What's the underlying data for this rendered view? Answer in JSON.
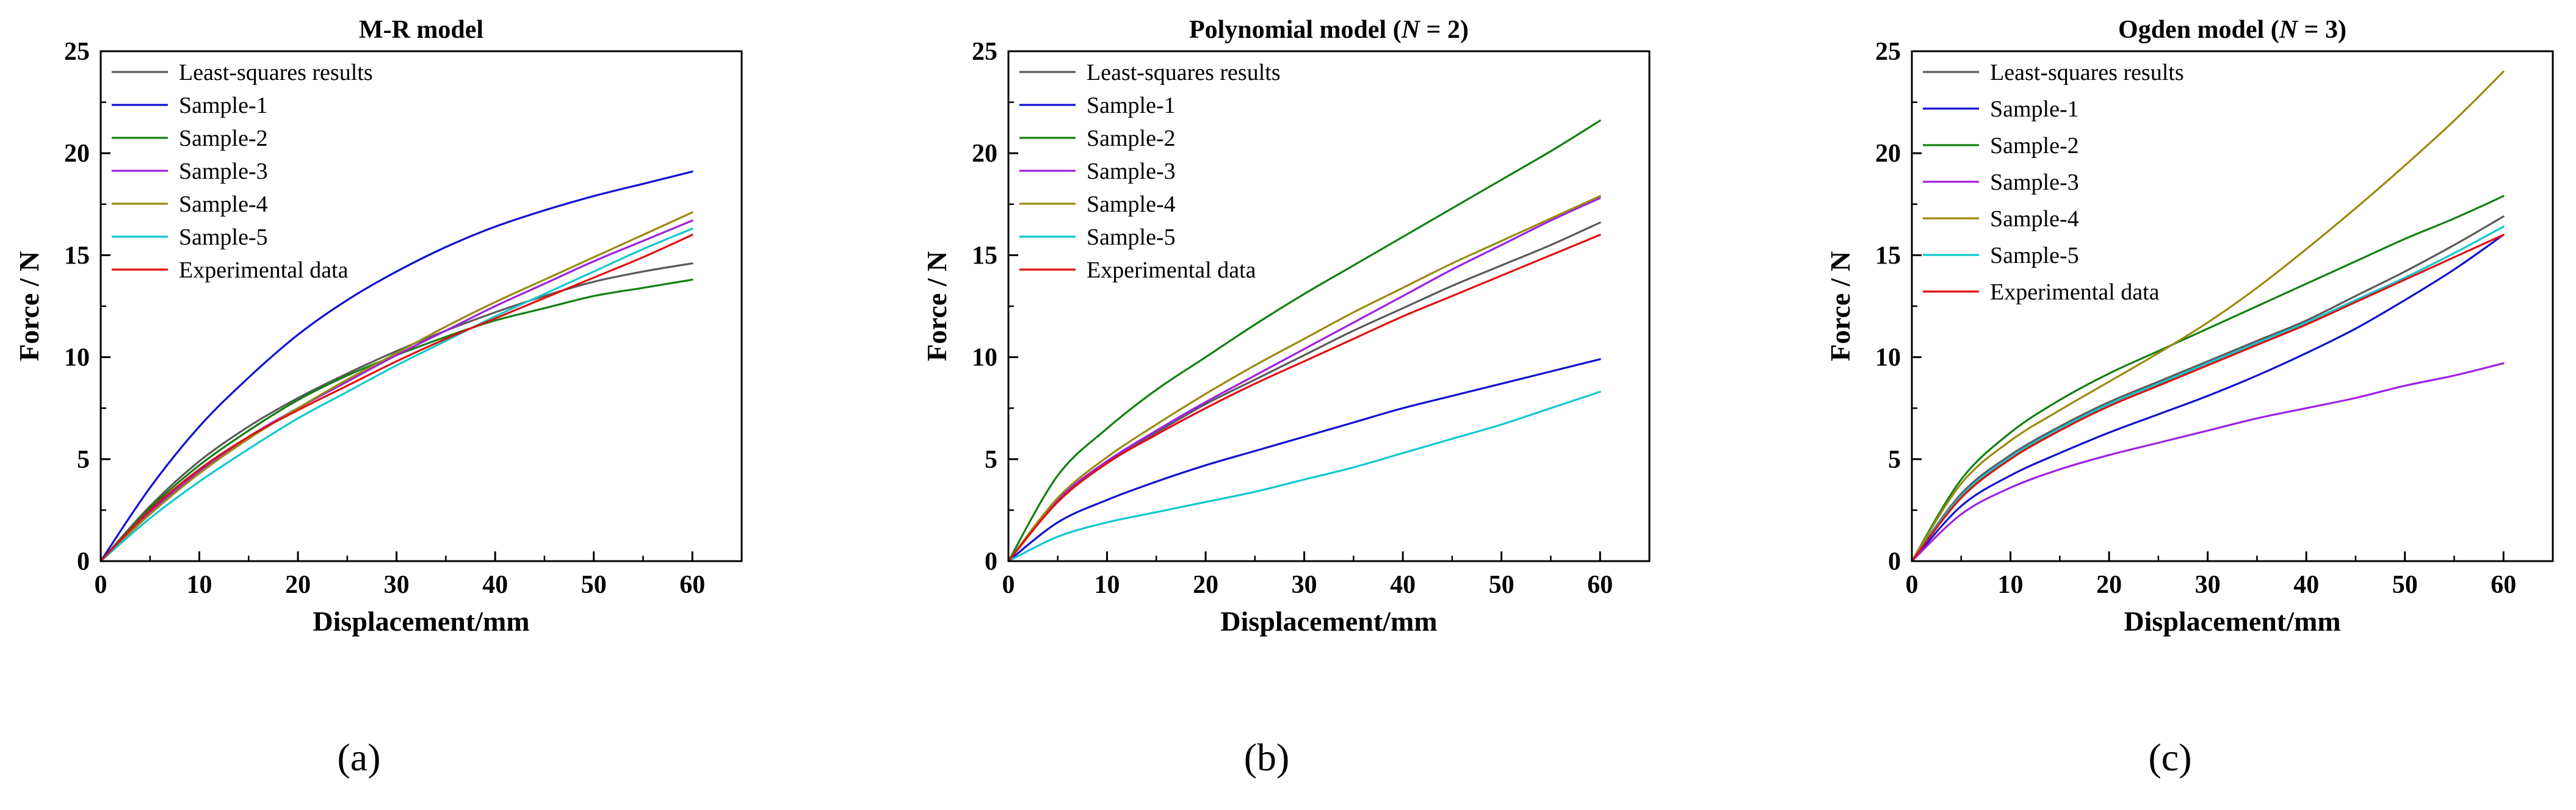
{
  "figure": {
    "panel_labels": [
      "(a)",
      "(b)",
      "(c)"
    ]
  },
  "chart_data": [
    {
      "type": "line",
      "title": "M-R model",
      "title_parts": [
        {
          "text": "M-R model",
          "italic": false
        }
      ],
      "xlabel": "Displacement/mm",
      "ylabel": "Force / N",
      "xlim": [
        0,
        65
      ],
      "ylim": [
        0,
        25
      ],
      "xticks": [
        0,
        10,
        20,
        30,
        40,
        50,
        60
      ],
      "yticks": [
        0,
        5,
        10,
        15,
        20,
        25
      ],
      "legend_position": "top-left",
      "x": [
        0,
        5,
        10,
        15,
        20,
        25,
        30,
        35,
        40,
        45,
        50,
        55,
        60
      ],
      "series": [
        {
          "name": "Least-squares results",
          "color": "#5a5a5a",
          "values": [
            0,
            2.7,
            4.9,
            6.6,
            8.0,
            9.2,
            10.3,
            11.3,
            12.2,
            13.0,
            13.7,
            14.2,
            14.6
          ]
        },
        {
          "name": "Sample-1",
          "color": "#1010d0",
          "values": [
            0,
            3.6,
            6.6,
            9.0,
            11.1,
            12.8,
            14.2,
            15.4,
            16.4,
            17.2,
            17.9,
            18.5,
            19.1
          ]
        },
        {
          "name": "Sample-2",
          "color": "#108010",
          "values": [
            0,
            2.6,
            4.7,
            6.4,
            7.9,
            9.1,
            10.1,
            11.0,
            11.8,
            12.4,
            13.0,
            13.4,
            13.8
          ]
        },
        {
          "name": "Sample-3",
          "color": "#a020e0",
          "values": [
            0,
            2.4,
            4.4,
            6.1,
            7.5,
            8.8,
            10.1,
            11.3,
            12.5,
            13.6,
            14.7,
            15.7,
            16.7
          ]
        },
        {
          "name": "Sample-4",
          "color": "#9a8a10",
          "values": [
            0,
            2.3,
            4.3,
            6.0,
            7.5,
            8.9,
            10.2,
            11.5,
            12.7,
            13.8,
            14.9,
            16.0,
            17.1
          ]
        },
        {
          "name": "Sample-5",
          "color": "#10c8d0",
          "values": [
            0,
            2.1,
            3.9,
            5.5,
            7.0,
            8.3,
            9.6,
            10.8,
            12.0,
            13.1,
            14.2,
            15.3,
            16.3
          ]
        },
        {
          "name": "Experimental data",
          "color": "#e01010",
          "values": [
            0,
            2.5,
            4.5,
            6.1,
            7.4,
            8.6,
            9.8,
            10.9,
            11.9,
            12.9,
            13.9,
            14.9,
            16.0
          ]
        }
      ]
    },
    {
      "type": "line",
      "title": "Polynomial model (N = 2)",
      "title_parts": [
        {
          "text": "Polynomial model (",
          "italic": false
        },
        {
          "text": "N",
          "italic": true
        },
        {
          "text": " = 2)",
          "italic": false
        }
      ],
      "xlabel": "Displacement/mm",
      "ylabel": "Force / N",
      "xlim": [
        0,
        65
      ],
      "ylim": [
        0,
        25
      ],
      "xticks": [
        0,
        10,
        20,
        30,
        40,
        50,
        60
      ],
      "yticks": [
        0,
        5,
        10,
        15,
        20,
        25
      ],
      "legend_position": "top-left",
      "x": [
        0,
        5,
        10,
        15,
        20,
        25,
        30,
        35,
        40,
        45,
        50,
        55,
        60
      ],
      "series": [
        {
          "name": "Least-squares results",
          "color": "#5a5a5a",
          "values": [
            0,
            3.0,
            4.9,
            6.3,
            7.7,
            8.9,
            10.1,
            11.3,
            12.4,
            13.5,
            14.5,
            15.5,
            16.6
          ]
        },
        {
          "name": "Sample-1",
          "color": "#1010d0",
          "values": [
            0,
            1.9,
            3.0,
            3.9,
            4.7,
            5.4,
            6.1,
            6.8,
            7.5,
            8.1,
            8.7,
            9.3,
            9.9
          ]
        },
        {
          "name": "Sample-2",
          "color": "#108010",
          "values": [
            0,
            4.2,
            6.5,
            8.4,
            10.0,
            11.6,
            13.1,
            14.5,
            15.9,
            17.3,
            18.7,
            20.1,
            21.6
          ]
        },
        {
          "name": "Sample-3",
          "color": "#a020e0",
          "values": [
            0,
            3.0,
            4.9,
            6.4,
            7.8,
            9.1,
            10.4,
            11.7,
            13.0,
            14.3,
            15.5,
            16.7,
            17.8
          ]
        },
        {
          "name": "Sample-4",
          "color": "#9a8a10",
          "values": [
            0,
            3.1,
            5.1,
            6.7,
            8.2,
            9.6,
            10.9,
            12.2,
            13.4,
            14.6,
            15.7,
            16.8,
            17.9
          ]
        },
        {
          "name": "Sample-5",
          "color": "#10c8d0",
          "values": [
            0,
            1.2,
            1.9,
            2.4,
            2.9,
            3.4,
            4.0,
            4.6,
            5.3,
            6.0,
            6.7,
            7.5,
            8.3
          ]
        },
        {
          "name": "Experimental data",
          "color": "#e01010",
          "values": [
            0,
            2.9,
            4.8,
            6.2,
            7.5,
            8.7,
            9.8,
            10.9,
            12.0,
            13.0,
            14.0,
            15.0,
            16.0
          ]
        }
      ]
    },
    {
      "type": "line",
      "title": "Ogden model (N = 3)",
      "title_parts": [
        {
          "text": "Ogden model (",
          "italic": false
        },
        {
          "text": "N",
          "italic": true
        },
        {
          "text": " = 3)",
          "italic": false
        }
      ],
      "xlabel": "Displacement/mm",
      "ylabel": "Force / N",
      "xlim": [
        0,
        65
      ],
      "ylim": [
        0,
        25
      ],
      "xticks": [
        0,
        10,
        20,
        30,
        40,
        50,
        60
      ],
      "yticks": [
        0,
        5,
        10,
        15,
        20,
        25
      ],
      "legend_position": "top-left",
      "x": [
        0,
        5,
        10,
        15,
        20,
        25,
        30,
        35,
        40,
        45,
        50,
        55,
        60
      ],
      "series": [
        {
          "name": "Least-squares results",
          "color": "#5a5a5a",
          "values": [
            0,
            3.3,
            5.2,
            6.6,
            7.8,
            8.8,
            9.8,
            10.8,
            11.8,
            13.0,
            14.2,
            15.5,
            16.9
          ]
        },
        {
          "name": "Sample-1",
          "color": "#1010d0",
          "values": [
            0,
            2.7,
            4.2,
            5.3,
            6.3,
            7.2,
            8.1,
            9.1,
            10.2,
            11.4,
            12.8,
            14.3,
            16.0
          ]
        },
        {
          "name": "Sample-2",
          "color": "#108010",
          "values": [
            0,
            4.0,
            6.3,
            7.9,
            9.2,
            10.3,
            11.4,
            12.5,
            13.6,
            14.7,
            15.8,
            16.8,
            17.9
          ]
        },
        {
          "name": "Sample-3",
          "color": "#a020e0",
          "values": [
            0,
            2.3,
            3.6,
            4.5,
            5.2,
            5.8,
            6.4,
            7.0,
            7.5,
            8.0,
            8.6,
            9.1,
            9.7
          ]
        },
        {
          "name": "Sample-4",
          "color": "#9a8a10",
          "values": [
            0,
            3.8,
            5.9,
            7.4,
            8.8,
            10.2,
            11.7,
            13.4,
            15.3,
            17.3,
            19.4,
            21.6,
            24.0
          ]
        },
        {
          "name": "Sample-5",
          "color": "#10c8d0",
          "values": [
            0,
            3.2,
            5.1,
            6.5,
            7.7,
            8.7,
            9.7,
            10.7,
            11.7,
            12.8,
            13.9,
            15.1,
            16.4
          ]
        },
        {
          "name": "Experimental data",
          "color": "#e01010",
          "values": [
            0,
            3.1,
            5.0,
            6.4,
            7.6,
            8.6,
            9.6,
            10.6,
            11.6,
            12.7,
            13.8,
            14.9,
            16.0
          ]
        }
      ]
    }
  ]
}
